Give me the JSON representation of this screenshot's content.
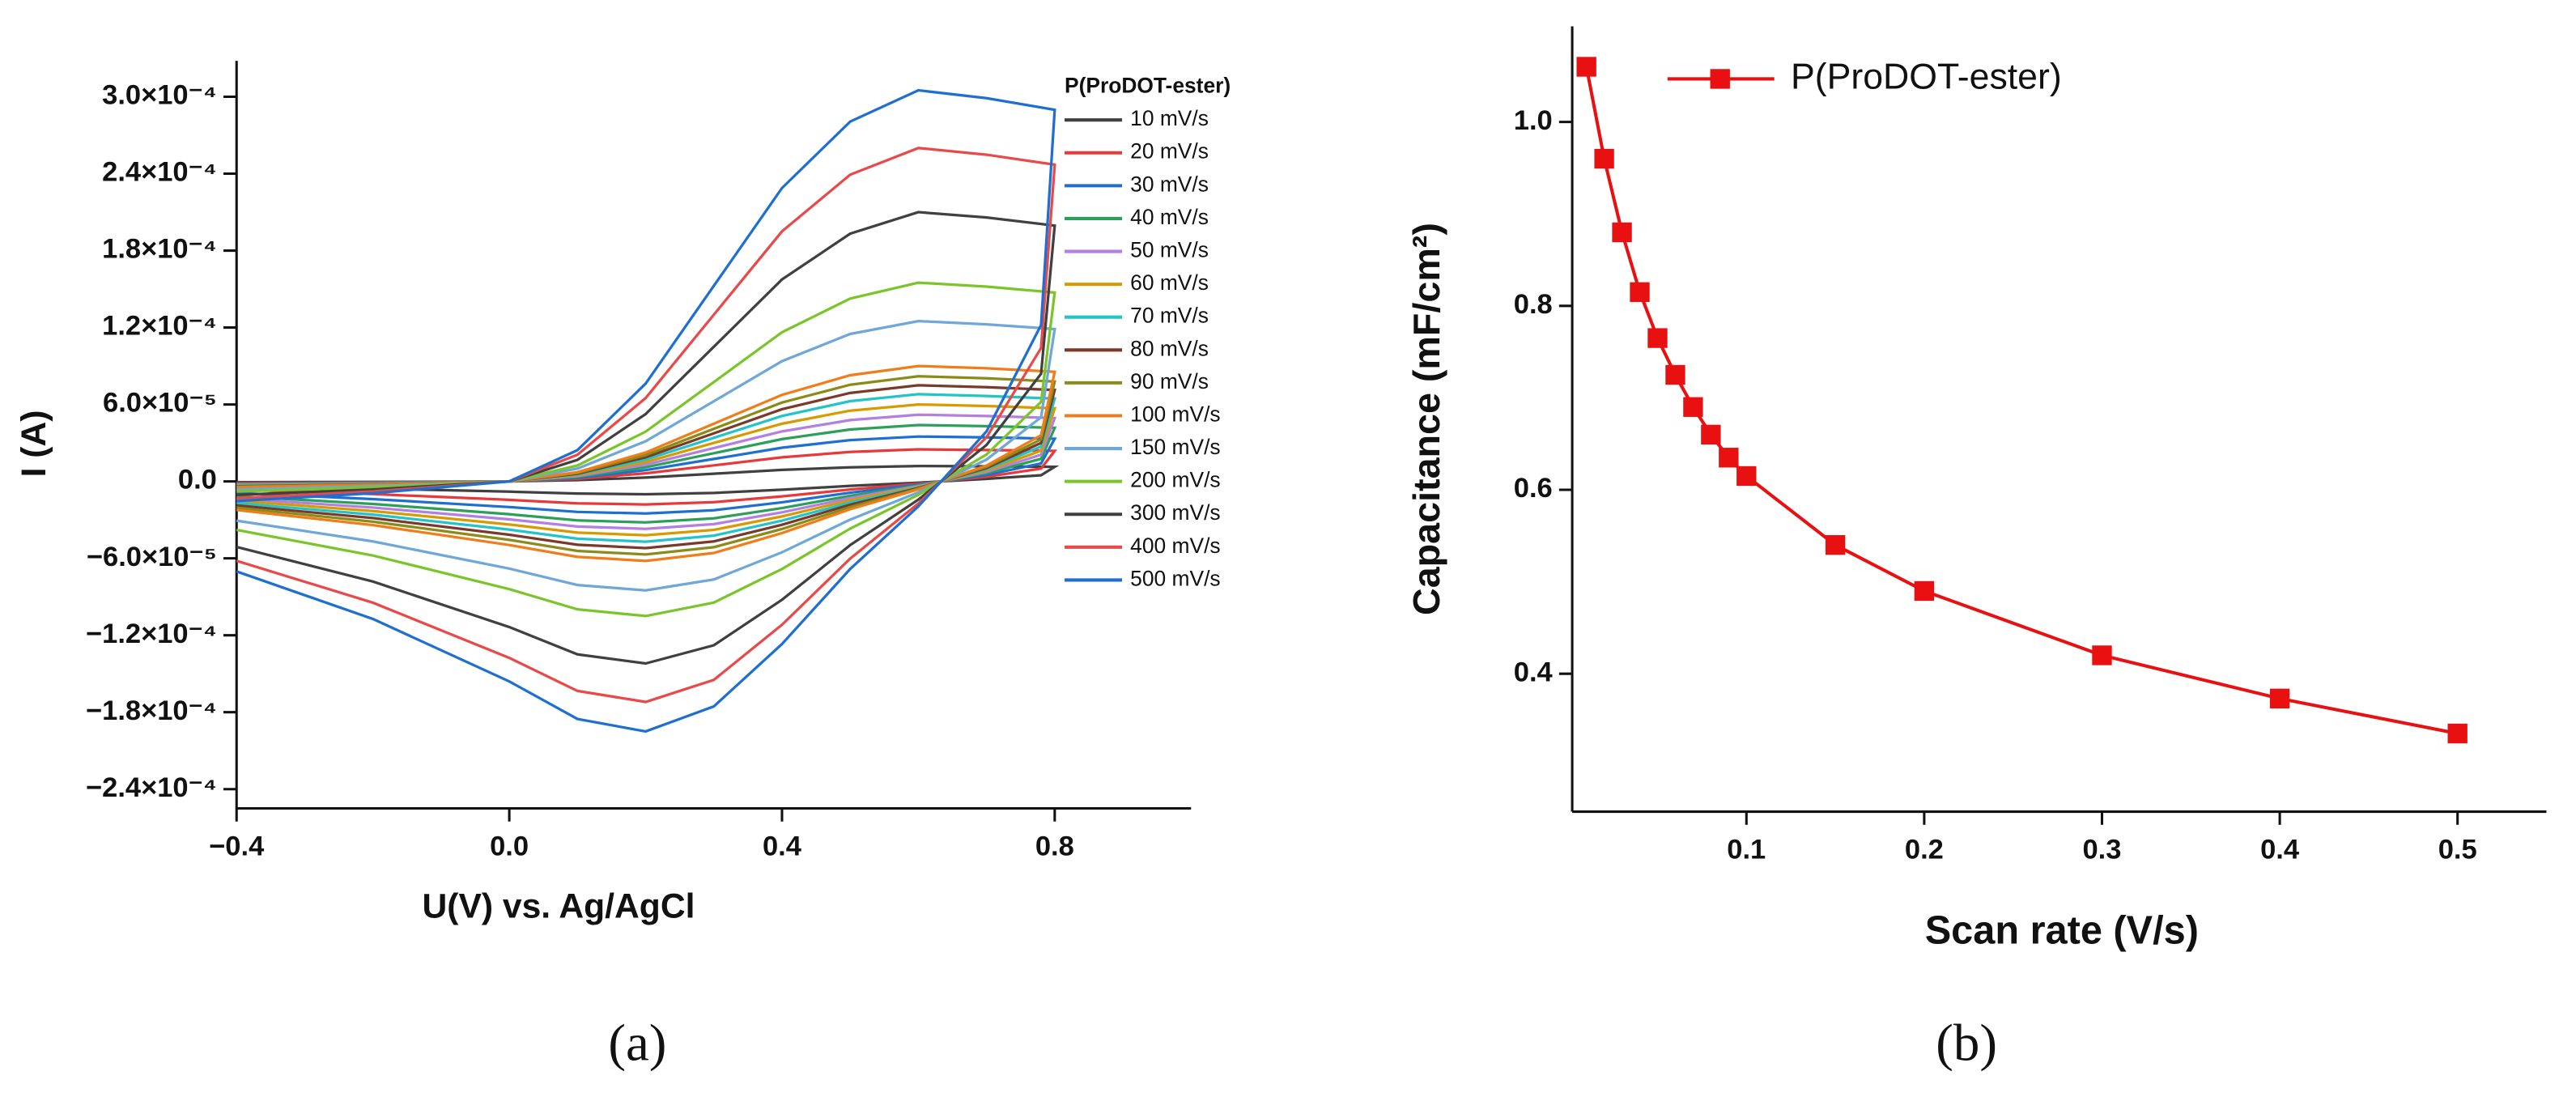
{
  "chart_data": [
    {
      "type": "line",
      "caption": "(a)",
      "xlabel": "U(V) vs. Ag/AgCl",
      "ylabel": "I (A)",
      "legend_title": "P(ProDOT-ester)",
      "xlim": [
        -0.4,
        1.0
      ],
      "xticks": [
        {
          "value": -0.4,
          "label": "−0.4"
        },
        {
          "value": 0,
          "label": "0.0"
        },
        0.4,
        0.8
      ],
      "ylim": [
        -0.000255,
        0.000328
      ],
      "yticks": [
        {
          "value": 0.0003,
          "label": "3.0×10⁻⁴"
        },
        {
          "value": 0.00024,
          "label": "2.4×10⁻⁴"
        },
        {
          "value": 0.00018,
          "label": "1.8×10⁻⁴"
        },
        {
          "value": 0.00012,
          "label": "1.2×10⁻⁴"
        },
        {
          "value": 6e-05,
          "label": "6.0×10⁻⁵"
        },
        {
          "value": 0,
          "label": "0.0"
        },
        {
          "value": -6e-05,
          "label": "−6.0×10⁻⁵"
        },
        {
          "value": -0.00012,
          "label": "−1.2×10⁻⁴"
        },
        {
          "value": -0.00018,
          "label": "−1.8×10⁻⁴"
        },
        {
          "value": -0.00024,
          "label": "−2.4×10⁻⁴"
        }
      ],
      "x": [
        -0.4,
        -0.2,
        0,
        0.1,
        0.2,
        0.3,
        0.4,
        0.5,
        0.6,
        0.7,
        0.8,
        0.8,
        0.78,
        0.7,
        0.6,
        0.5,
        0.4,
        0.3,
        0.2,
        0.1,
        0,
        -0.2,
        -0.4
      ],
      "series": [
        {
          "name": "10 mV/s",
          "color": "#404040",
          "values": [
            -6e-07,
            -4e-07,
            0,
            1e-06,
            3e-06,
            6e-06,
            9e-06,
            1.1e-05,
            1.2e-05,
            1.18e-05,
            1.14e-05,
            1.14e-05,
            4.8e-06,
            2e-06,
            -1e-06,
            -3.5e-06,
            -6.5e-06,
            -9e-06,
            -1e-05,
            -9.5e-06,
            -8e-06,
            -5.5e-06,
            -3.6e-06
          ]
        },
        {
          "name": "20 mV/s",
          "color": "#e8393a",
          "values": [
            -1.3e-06,
            -8e-07,
            0,
            2e-06,
            6.3e-06,
            1.25e-05,
            1.88e-05,
            2.3e-05,
            2.5e-05,
            2.45e-05,
            2.38e-05,
            2.38e-05,
            1e-05,
            3.6e-06,
            -1.8e-06,
            -6.3e-06,
            -1.17e-05,
            -1.62e-05,
            -1.8e-05,
            -1.71e-05,
            -1.44e-05,
            -9.9e-06,
            -6.5e-06
          ]
        },
        {
          "name": "30 mV/s",
          "color": "#1f6fd1",
          "values": [
            -1.8e-06,
            -1.1e-06,
            0,
            2.8e-06,
            8.8e-06,
            1.75e-05,
            2.63e-05,
            3.22e-05,
            3.5e-05,
            3.43e-05,
            3.33e-05,
            3.33e-05,
            1.4e-05,
            5e-06,
            -2.5e-06,
            -8.8e-06,
            -1.63e-05,
            -2.25e-05,
            -2.5e-05,
            -2.38e-05,
            -2e-05,
            -1.38e-05,
            -9e-06
          ]
        },
        {
          "name": "40 mV/s",
          "color": "#2ca05a",
          "values": [
            -2.2e-06,
            -1.3e-06,
            0,
            3.5e-06,
            1.1e-05,
            2.2e-05,
            3.3e-05,
            4.05e-05,
            4.4e-05,
            4.31e-05,
            4.18e-05,
            4.18e-05,
            1.76e-05,
            6.4e-06,
            -3.2e-06,
            -1.12e-05,
            -2.08e-05,
            -2.88e-05,
            -3.2e-05,
            -3.04e-05,
            -2.56e-05,
            -1.76e-05,
            -1.15e-05
          ]
        },
        {
          "name": "50 mV/s",
          "color": "#b37fe0",
          "values": [
            -2.6e-06,
            -1.6e-06,
            0,
            4.2e-06,
            1.3e-05,
            2.6e-05,
            3.9e-05,
            4.78e-05,
            5.2e-05,
            5.1e-05,
            4.94e-05,
            4.94e-05,
            2.08e-05,
            7.4e-06,
            -3.7e-06,
            -1.3e-05,
            -2.41e-05,
            -3.33e-05,
            -3.7e-05,
            -3.52e-05,
            -2.96e-05,
            -2.04e-05,
            -1.33e-05
          ]
        },
        {
          "name": "60 mV/s",
          "color": "#d99a00",
          "values": [
            -3e-06,
            -1.8e-06,
            0,
            4.8e-06,
            1.5e-05,
            3e-05,
            4.5e-05,
            5.52e-05,
            6e-05,
            5.88e-05,
            5.7e-05,
            5.7e-05,
            2.4e-05,
            8.4e-06,
            -4.2e-06,
            -1.47e-05,
            -2.73e-05,
            -3.78e-05,
            -4.2e-05,
            -3.99e-05,
            -3.36e-05,
            -2.31e-05,
            -1.51e-05
          ]
        },
        {
          "name": "70 mV/s",
          "color": "#22c4c9",
          "values": [
            -3.4e-06,
            -2e-06,
            0,
            5.4e-06,
            1.7e-05,
            3.4e-05,
            5.1e-05,
            6.26e-05,
            6.8e-05,
            6.66e-05,
            6.46e-05,
            6.46e-05,
            2.72e-05,
            9.4e-06,
            -4.7e-06,
            -1.65e-05,
            -3.06e-05,
            -4.23e-05,
            -4.7e-05,
            -4.47e-05,
            -3.76e-05,
            -2.59e-05,
            -1.69e-05
          ]
        },
        {
          "name": "80 mV/s",
          "color": "#7a3a2a",
          "values": [
            -3.8e-06,
            -2.3e-06,
            0,
            6e-06,
            1.88e-05,
            3.75e-05,
            5.63e-05,
            6.9e-05,
            7.5e-05,
            7.35e-05,
            7.13e-05,
            7.13e-05,
            3e-05,
            1.04e-05,
            -5.2e-06,
            -1.82e-05,
            -3.38e-05,
            -4.68e-05,
            -5.2e-05,
            -4.94e-05,
            -4.16e-05,
            -2.86e-05,
            -1.87e-05
          ]
        },
        {
          "name": "90 mV/s",
          "color": "#8b8b1a",
          "values": [
            -4.1e-06,
            -2.5e-06,
            0,
            6.6e-06,
            2.05e-05,
            4.1e-05,
            6.15e-05,
            7.54e-05,
            8.2e-05,
            8.04e-05,
            7.79e-05,
            7.79e-05,
            3.28e-05,
            1.14e-05,
            -5.7e-06,
            -2e-05,
            -3.71e-05,
            -5.13e-05,
            -5.7e-05,
            -5.42e-05,
            -4.56e-05,
            -3.14e-05,
            -2.05e-05
          ]
        },
        {
          "name": "100 mV/s",
          "color": "#f07d1a",
          "values": [
            -4.5e-06,
            -2.7e-06,
            0,
            7.2e-06,
            2.25e-05,
            4.5e-05,
            6.75e-05,
            8.28e-05,
            9e-05,
            8.82e-05,
            8.55e-05,
            8.55e-05,
            3.6e-05,
            1.24e-05,
            -6.2e-06,
            -2.17e-05,
            -4.03e-05,
            -5.58e-05,
            -6.2e-05,
            -5.89e-05,
            -4.96e-05,
            -3.41e-05,
            -2.23e-05
          ]
        },
        {
          "name": "150 mV/s",
          "color": "#6ea7d8",
          "values": [
            -6.3e-06,
            -3.8e-06,
            0,
            1e-05,
            3.13e-05,
            6.25e-05,
            9.38e-05,
            0.000115,
            0.000125,
            0.0001225,
            0.0001188,
            0.0001188,
            5e-05,
            1.7e-05,
            -8.5e-06,
            -2.98e-05,
            -5.53e-05,
            -7.65e-05,
            -8.5e-05,
            -8.08e-05,
            -6.8e-05,
            -4.68e-05,
            -3.06e-05
          ]
        },
        {
          "name": "200 mV/s",
          "color": "#7bc52a",
          "values": [
            -7.8e-06,
            -4.7e-06,
            0,
            1.24e-05,
            3.88e-05,
            7.75e-05,
            0.0001163,
            0.0001426,
            0.000155,
            0.0001519,
            0.0001473,
            0.0001473,
            6.2e-05,
            2.1e-05,
            -1.05e-05,
            -3.68e-05,
            -6.83e-05,
            -9.45e-05,
            -0.000105,
            -9.98e-05,
            -8.4e-05,
            -5.78e-05,
            -3.78e-05
          ]
        },
        {
          "name": "300 mV/s",
          "color": "#404040",
          "values": [
            -1.05e-05,
            -6.3e-06,
            0,
            1.68e-05,
            5.25e-05,
            0.000105,
            0.0001575,
            0.0001932,
            0.00021,
            0.0002058,
            0.0001995,
            0.0001995,
            8.4e-05,
            2.84e-05,
            -1.42e-05,
            -4.97e-05,
            -9.23e-05,
            -0.0001278,
            -0.000142,
            -0.0001349,
            -0.0001136,
            -7.81e-05,
            -5.11e-05
          ]
        },
        {
          "name": "400 mV/s",
          "color": "#e84a4a",
          "values": [
            -1.3e-05,
            -7.8e-06,
            0,
            2.08e-05,
            6.5e-05,
            0.00013,
            0.000195,
            0.0002392,
            0.00026,
            0.0002548,
            0.000247,
            0.000247,
            0.000104,
            3.44e-05,
            -1.72e-05,
            -6.02e-05,
            -0.0001118,
            -0.0001548,
            -0.000172,
            -0.0001634,
            -0.0001376,
            -9.46e-05,
            -6.19e-05
          ]
        },
        {
          "name": "500 mV/s",
          "color": "#1f6fd1",
          "values": [
            -1.53e-05,
            -9.2e-06,
            0,
            2.44e-05,
            7.63e-05,
            0.0001525,
            0.0002288,
            0.0002806,
            0.000305,
            0.0002989,
            0.0002898,
            0.0002898,
            0.000122,
            3.9e-05,
            -1.95e-05,
            -6.83e-05,
            -0.0001268,
            -0.0001755,
            -0.000195,
            -0.0001853,
            -0.000156,
            -0.0001073,
            -7.02e-05
          ]
        }
      ]
    },
    {
      "type": "line",
      "caption": "(b)",
      "xlabel": "Scan rate (V/s)",
      "ylabel": "Capacitance (mF/cm²)",
      "marker": "square",
      "legend": "top-left",
      "xlim": [
        0.002,
        0.55
      ],
      "xticks": [
        0.1,
        0.2,
        0.3,
        0.4,
        0.5
      ],
      "ylim": [
        0.25,
        1.104
      ],
      "yticks": [
        0.4,
        0.6,
        0.8,
        {
          "value": 1,
          "label": "1.0"
        }
      ],
      "x": [
        0.01,
        0.02,
        0.03,
        0.04,
        0.05,
        0.06,
        0.07,
        0.08,
        0.09,
        0.1,
        0.15,
        0.2,
        0.3,
        0.4,
        0.5
      ],
      "series": [
        {
          "name": "P(ProDOT-ester)",
          "color": "#e81010",
          "values": [
            1.06,
            0.96,
            0.88,
            0.815,
            0.765,
            0.725,
            0.69,
            0.66,
            0.635,
            0.615,
            0.54,
            0.49,
            0.42,
            0.373,
            0.335
          ]
        }
      ]
    }
  ]
}
